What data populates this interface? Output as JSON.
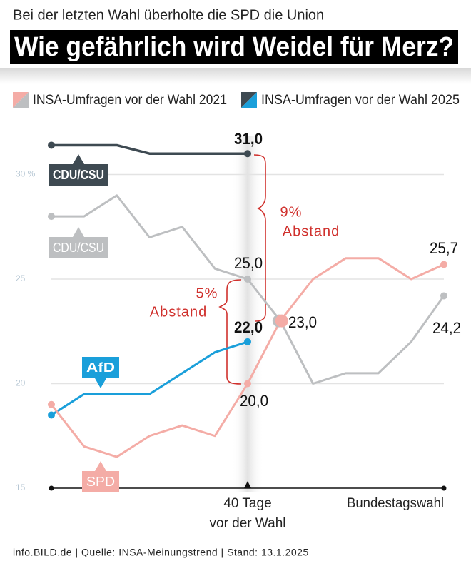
{
  "chart_data": {
    "type": "line",
    "subtitle": "Bei der letzten Wahl überholte die SPD die Union",
    "title": "Wie gefährlich wird Weidel für Merz?",
    "legend": [
      {
        "label": "INSA-Umfragen vor der Wahl 2021",
        "colors": [
          "#f4aca6",
          "#bdbfc1"
        ]
      },
      {
        "label": "INSA-Umfragen vor der Wahl 2025",
        "colors": [
          "#3e4a52",
          "#1a9fda"
        ]
      }
    ],
    "categories": [
      null,
      null,
      null,
      null,
      null,
      null,
      "40 Tage vor der Wahl",
      null,
      null,
      null,
      null,
      null,
      "Bundestagswahl"
    ],
    "series": [
      {
        "name": "CDU/CSU",
        "color": "#3e4a52",
        "values": [
          31.4,
          31.4,
          31.4,
          31.0,
          31.0,
          31.0,
          31.0,
          null,
          null,
          null,
          null,
          null,
          null
        ],
        "value_labels": [
          null,
          null,
          null,
          null,
          null,
          null,
          "31,0",
          null,
          null,
          null,
          null,
          null,
          null
        ]
      },
      {
        "name": "AfD",
        "color": "#1a9fda",
        "values": [
          18.5,
          19.5,
          19.5,
          19.5,
          20.5,
          21.5,
          22.0,
          null,
          null,
          null,
          null,
          null,
          null
        ],
        "value_labels": [
          null,
          null,
          null,
          null,
          null,
          null,
          "22,0",
          null,
          null,
          null,
          null,
          null,
          null
        ]
      },
      {
        "name": "CDU/CSU",
        "color": "#bdbfc1",
        "values": [
          28.0,
          28.0,
          29.0,
          27.0,
          27.5,
          25.5,
          25.0,
          23.0,
          20.0,
          20.5,
          20.5,
          22.0,
          24.2
        ],
        "value_labels": [
          null,
          null,
          null,
          null,
          null,
          null,
          "25,0",
          null,
          null,
          null,
          null,
          null,
          "24,2"
        ]
      },
      {
        "name": "SPD",
        "color": "#f4aca6",
        "values": [
          19.0,
          17.0,
          16.5,
          17.5,
          18.0,
          17.5,
          20.0,
          23.0,
          25.0,
          26.0,
          26.0,
          25.0,
          25.7
        ],
        "value_labels": [
          null,
          null,
          null,
          null,
          null,
          null,
          "20,0",
          "23,0",
          null,
          null,
          null,
          null,
          "25,7"
        ]
      }
    ],
    "ylim": [
      15,
      32.3
    ],
    "yticks": [
      15,
      20,
      25,
      {
        "value": 30,
        "label": "30 %"
      }
    ],
    "grid": true,
    "annotations": [
      "9%",
      "Abstand",
      "5%",
      "Abstand"
    ],
    "source": "info.BILD.de | Quelle: INSA-Meinungstrend | Stand: 13.1.2025"
  }
}
